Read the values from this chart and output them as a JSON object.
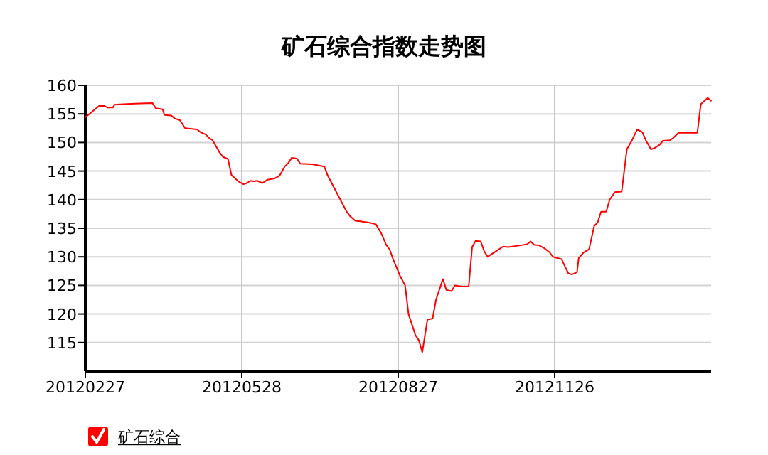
{
  "chart_data": {
    "type": "line",
    "title": "矿石综合指数走势图",
    "xlim": [
      "2012-02-27",
      "2013-02-25"
    ],
    "xticks": [
      {
        "value": "2012-02-27",
        "label": "20120227"
      },
      {
        "value": "2012-05-28",
        "label": "20120528"
      },
      {
        "value": "2012-08-27",
        "label": "20120827"
      },
      {
        "value": "2012-11-26",
        "label": "20121126"
      }
    ],
    "ylim": [
      110,
      160
    ],
    "yticks": [
      115,
      120,
      125,
      130,
      135,
      140,
      145,
      150,
      155,
      160
    ],
    "grid": true,
    "legend": "bottom left",
    "x": [
      "2012-02-27",
      "2012-03-02",
      "2012-03-06",
      "2012-03-09",
      "2012-03-11",
      "2012-03-14",
      "2012-03-15",
      "2012-03-20",
      "2012-03-27",
      "2012-04-06",
      "2012-04-08",
      "2012-04-12",
      "2012-04-13",
      "2012-04-17",
      "2012-04-19",
      "2012-04-22",
      "2012-04-25",
      "2012-05-02",
      "2012-05-04",
      "2012-05-07",
      "2012-05-09",
      "2012-05-11",
      "2012-05-15",
      "2012-05-17",
      "2012-05-20",
      "2012-05-22",
      "2012-05-26",
      "2012-05-29",
      "2012-05-31",
      "2012-06-02",
      "2012-06-04",
      "2012-06-06",
      "2012-06-09",
      "2012-06-12",
      "2012-06-16",
      "2012-06-19",
      "2012-06-22",
      "2012-06-24",
      "2012-06-26",
      "2012-06-29",
      "2012-07-01",
      "2012-07-08",
      "2012-07-15",
      "2012-07-17",
      "2012-07-20",
      "2012-07-25",
      "2012-07-28",
      "2012-07-30",
      "2012-08-02",
      "2012-08-05",
      "2012-08-10",
      "2012-08-14",
      "2012-08-17",
      "2012-08-20",
      "2012-08-22",
      "2012-08-24",
      "2012-08-28",
      "2012-08-31",
      "2012-09-02",
      "2012-09-06",
      "2012-09-08",
      "2012-09-10",
      "2012-09-12",
      "2012-09-13",
      "2012-09-16",
      "2012-09-18",
      "2012-09-22",
      "2012-09-24",
      "2012-09-27",
      "2012-09-29",
      "2012-10-03",
      "2012-10-07",
      "2012-10-09",
      "2012-10-11",
      "2012-10-14",
      "2012-10-16",
      "2012-10-18",
      "2012-10-23",
      "2012-10-27",
      "2012-10-30",
      "2012-11-06",
      "2012-11-10",
      "2012-11-12",
      "2012-11-14",
      "2012-11-17",
      "2012-11-20",
      "2012-11-23",
      "2012-11-25",
      "2012-11-30",
      "2012-12-02",
      "2012-12-04",
      "2012-12-06",
      "2012-12-09",
      "2012-12-10",
      "2012-12-13",
      "2012-12-16",
      "2012-12-19",
      "2012-12-21",
      "2012-12-23",
      "2012-12-26",
      "2012-12-28",
      "2012-12-31",
      "2013-01-04",
      "2013-01-07",
      "2013-01-10",
      "2013-01-13",
      "2013-01-16",
      "2013-01-18",
      "2013-01-21",
      "2013-01-23",
      "2013-01-26",
      "2013-01-28",
      "2013-02-01",
      "2013-02-03",
      "2013-02-06",
      "2013-02-17",
      "2013-02-19",
      "2013-02-23",
      "2013-02-25"
    ],
    "series": [
      {
        "name": "矿石综合",
        "color": "#ff0000",
        "values": [
          154.4,
          155.4,
          156.4,
          156.4,
          156.1,
          156.1,
          156.6,
          156.7,
          156.8,
          156.9,
          156.0,
          155.8,
          154.8,
          154.7,
          154.2,
          153.9,
          152.5,
          152.3,
          151.8,
          151.4,
          150.8,
          150.4,
          148.3,
          147.5,
          147.1,
          144.3,
          143.2,
          142.7,
          142.9,
          143.3,
          143.2,
          143.3,
          142.9,
          143.5,
          143.7,
          144.2,
          145.8,
          146.4,
          147.3,
          147.2,
          146.3,
          146.2,
          145.8,
          144.2,
          142.5,
          139.6,
          137.9,
          137.1,
          136.3,
          136.2,
          136.0,
          135.7,
          134.2,
          132.1,
          131.3,
          129.6,
          126.7,
          125.0,
          120.0,
          116.3,
          115.4,
          113.3,
          117.1,
          119.0,
          119.2,
          122.5,
          126.1,
          124.2,
          124.0,
          125.0,
          124.8,
          124.8,
          131.7,
          132.8,
          132.7,
          131.0,
          130.0,
          131.0,
          131.8,
          131.7,
          132.0,
          132.2,
          132.7,
          132.1,
          132.0,
          131.5,
          130.8,
          130.0,
          129.6,
          128.3,
          127.1,
          126.9,
          127.3,
          129.8,
          130.8,
          131.3,
          135.4,
          136.0,
          137.9,
          137.9,
          140.0,
          141.3,
          141.4,
          148.8,
          150.4,
          152.3,
          151.8,
          150.4,
          148.8,
          149.0,
          149.6,
          150.3,
          150.4,
          150.8,
          151.7,
          151.7,
          156.7,
          157.8,
          157.3
        ]
      }
    ]
  }
}
